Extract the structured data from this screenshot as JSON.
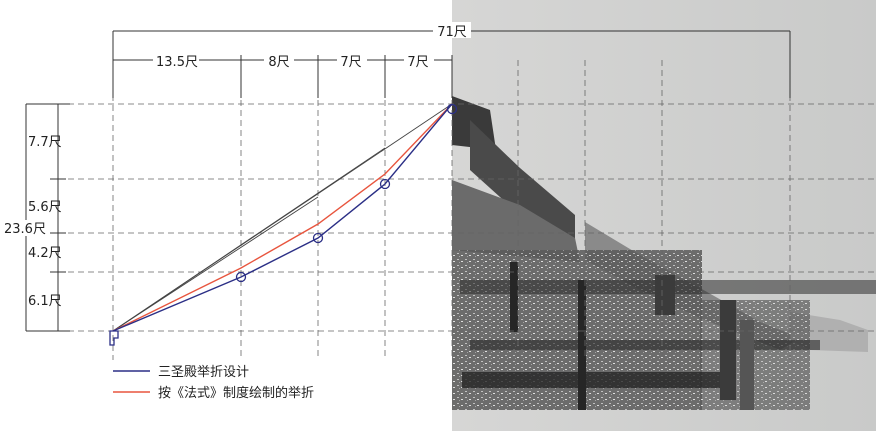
{
  "dimensions": {
    "total_span": "71尺",
    "segments": [
      "13.5尺",
      "8尺",
      "7尺",
      "7尺"
    ],
    "total_rise": "23.6尺",
    "rises": [
      "7.7尺",
      "5.6尺",
      "4.2尺",
      "6.1尺"
    ]
  },
  "legend": {
    "items": [
      {
        "label": "三圣殿举折设计",
        "color": "#2b2f86"
      },
      {
        "label": "按《法式》制度绘制的举折",
        "color": "#e8553e"
      }
    ]
  },
  "colors": {
    "design_line": "#2b2f86",
    "fashi_line": "#e8553e",
    "reference_line": "#555555",
    "dim_line": "#333333",
    "photo_background": "#cfd0cf"
  },
  "photo": {
    "subject": "point-cloud-roof-eave-section",
    "icon": "point-cloud-image"
  }
}
